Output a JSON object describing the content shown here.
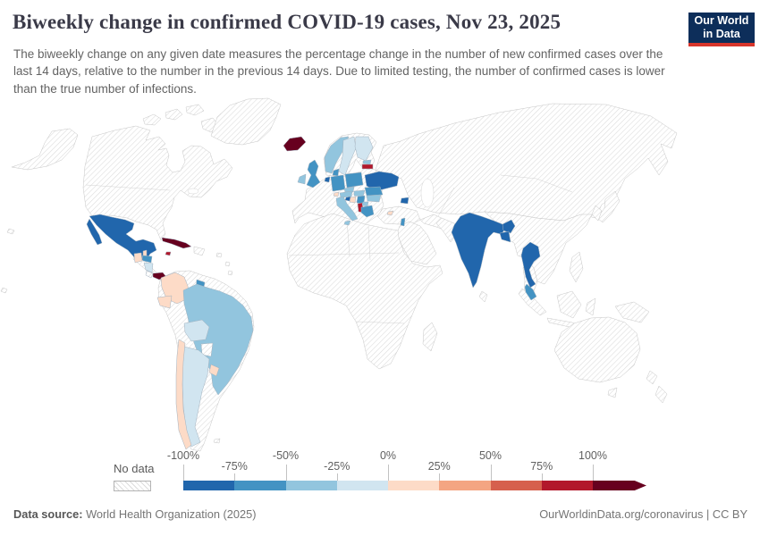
{
  "header": {
    "title": "Biweekly change in confirmed COVID-19 cases, Nov 23, 2025",
    "logo": {
      "line1": "Our World",
      "line2": "in Data"
    }
  },
  "subtitle": "The biweekly change on any given date measures the percentage change in the number of new confirmed cases over the last 14 days, relative to the number in the previous 14 days. Due to limited testing, the number of confirmed cases is lower than the true number of infections.",
  "legend": {
    "no_data_label": "No data",
    "ticks": [
      "-100%",
      "-75%",
      "-50%",
      "-25%",
      "0%",
      "25%",
      "50%",
      "75%",
      "100%"
    ],
    "bin_colors": [
      "#2166ac",
      "#4393c3",
      "#92c5de",
      "#d1e5f0",
      "#fddbc7",
      "#f4a582",
      "#d6604d",
      "#b2182b",
      "#67001f"
    ]
  },
  "footer": {
    "datasource_label": "Data source:",
    "datasource_value": " World Health Organization (2025)",
    "credit": "OurWorldinData.org/coronavirus | CC BY"
  },
  "chart_data": {
    "type": "choropleth_map",
    "title": "Biweekly change in confirmed COVID-19 cases",
    "date": "Nov 23, 2025",
    "unit": "%",
    "bins": [
      "-100% to -75%",
      "-75% to -50%",
      "-50% to -25%",
      "-25% to 0%",
      "0% to 25%",
      "25% to 50%",
      "50% to 75%",
      "75% to 100%",
      "over 100%",
      "No data"
    ],
    "countries": {
      "Mexico": "-100% to -75%",
      "Netherlands": "-100% to -75%",
      "Ukraine": "-100% to -75%",
      "Slovenia": "-100% to -75%",
      "Armenia": "-100% to -75%",
      "India": "-100% to -75%",
      "Bangladesh": "-100% to -75%",
      "Thailand": "-100% to -75%",
      "Honduras": "-75% to -50%",
      "Guyana": "-75% to -50%",
      "United Kingdom": "-75% to -50%",
      "Denmark": "-75% to -50%",
      "Germany": "-75% to -50%",
      "Poland": "-75% to -50%",
      "Serbia": "-75% to -50%",
      "Romania": "-75% to -50%",
      "Greece": "-75% to -50%",
      "Israel": "-75% to -50%",
      "Malaysia": "-75% to -50%",
      "Brazil": "-50% to -25%",
      "Ireland": "-50% to -25%",
      "Norway": "-50% to -25%",
      "Estonia": "-50% to -25%",
      "Czechia": "-50% to -25%",
      "Austria": "-50% to -25%",
      "Hungary": "-50% to -25%",
      "Italy": "-50% to -25%",
      "Bulgaria": "-50% to -25%",
      "North Macedonia": "-50% to -25%",
      "Nicaragua": "-25% to 0%",
      "Bolivia": "-25% to 0%",
      "Argentina": "-25% to 0%",
      "Sweden": "-25% to 0%",
      "Finland": "-25% to 0%",
      "Belize": "0% to 25%",
      "Guatemala": "0% to 25%",
      "Colombia": "0% to 25%",
      "Ecuador": "0% to 25%",
      "Chile": "0% to 25%",
      "Uruguay": "0% to 25%",
      "Switzerland": "0% to 25%",
      "Croatia": "0% to 25%",
      "Cyprus": "0% to 25%",
      "Jamaica": "75% to 100%",
      "Latvia": "75% to 100%",
      "Albania": "75% to 100%",
      "Cuba": "over 100%",
      "Panama": "over 100%",
      "Iceland": "over 100%",
      "Costa Rica": "No data",
      "Paraguay": "No data"
    }
  },
  "map": {
    "country_colors": {
      "mexico": "#2166ac",
      "belize": "#fddbc7",
      "guatemala": "#fddbc7",
      "honduras": "#4393c3",
      "nicaragua": "#d1e5f0",
      "costa-rica": "no-data",
      "panama": "#67001f",
      "cuba": "#67001f",
      "jamaica": "#b2182b",
      "colombia": "#fddbc7",
      "ecuador": "#fddbc7",
      "guyana": "#4393c3",
      "brazil": "#92c5de",
      "bolivia": "#d1e5f0",
      "paraguay": "no-data",
      "argentina": "#d1e5f0",
      "chile": "#fddbc7",
      "uruguay": "#fddbc7",
      "iceland": "#67001f",
      "norway": "#92c5de",
      "sweden": "#d1e5f0",
      "finland": "#d1e5f0",
      "estonia": "#92c5de",
      "latvia": "#b2182b",
      "denmark": "#4393c3",
      "uk": "#4393c3",
      "ireland": "#92c5de",
      "netherlands": "#2166ac",
      "germany": "#4393c3",
      "poland": "#4393c3",
      "ukraine": "#2166ac",
      "czechia": "#92c5de",
      "austria": "#92c5de",
      "switzerland": "#fddbc7",
      "hungary": "#92c5de",
      "slovenia": "#2166ac",
      "croatia": "#fddbc7",
      "serbia": "#4393c3",
      "romania": "#4393c3",
      "bulgaria": "#92c5de",
      "albania": "#b2182b",
      "macedonia": "#92c5de",
      "greece": "#4393c3",
      "italy": "#92c5de",
      "sicily": "#92c5de",
      "armenia": "#2166ac",
      "cyprus": "#fddbc7",
      "israel": "#4393c3",
      "india": "#2166ac",
      "bangladesh": "#2166ac",
      "thailand": "#2166ac",
      "malaysia": "#4393c3"
    }
  }
}
